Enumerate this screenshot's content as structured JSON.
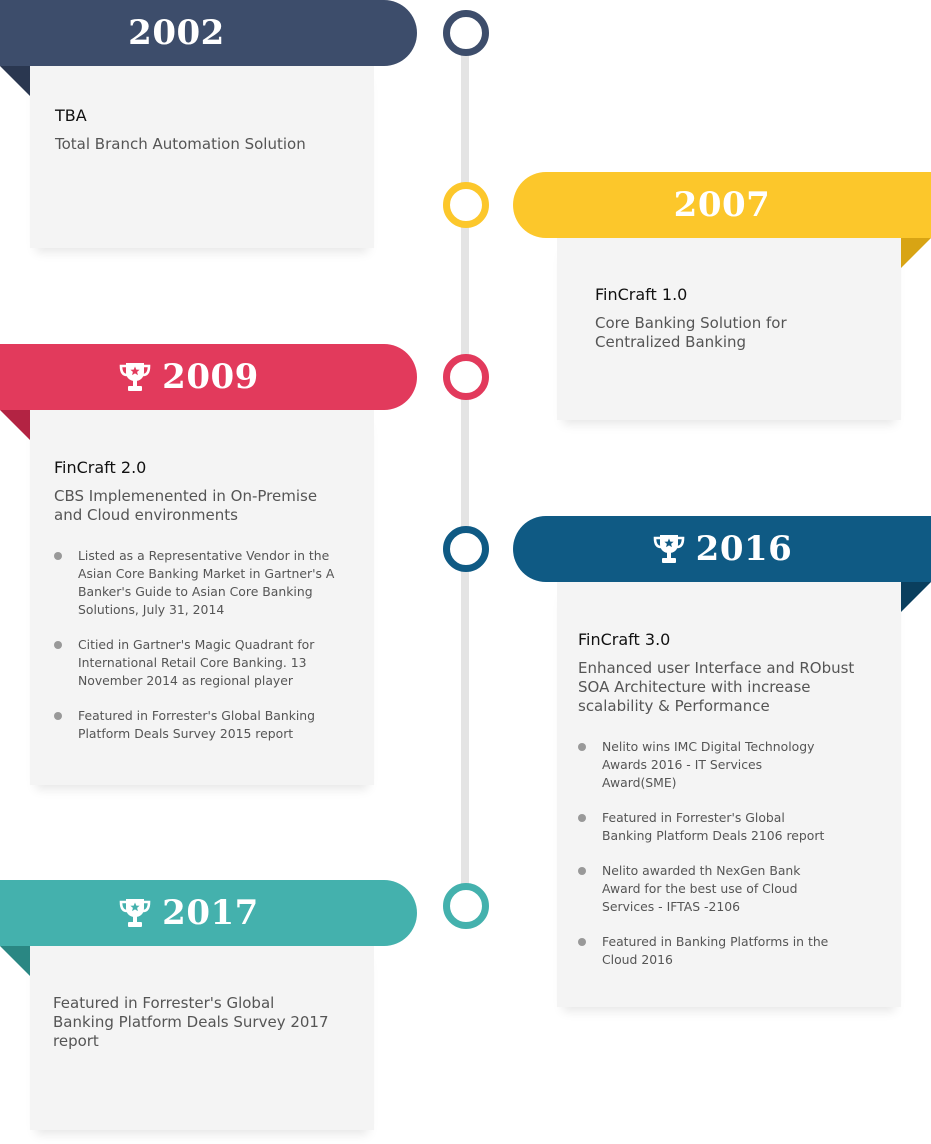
{
  "colors": {
    "navy": "#3d4d6b",
    "yellow": "#fcc72b",
    "red": "#e23a5c",
    "blue": "#0f5a84",
    "teal": "#44b1ad",
    "line": "#e4e4e4",
    "card": "#f4f4f4"
  },
  "milestones": [
    {
      "year": "2002",
      "title": "TBA",
      "subtitle": "Total Branch Automation Solution",
      "has_trophy": false,
      "bullets": []
    },
    {
      "year": "2007",
      "title": "FinCraft 1.0",
      "subtitle": "Core Banking Solution for Centralized Banking",
      "has_trophy": false,
      "bullets": []
    },
    {
      "year": "2009",
      "title": "FinCraft 2.0",
      "subtitle": "CBS Implemenented in On-Premise and Cloud environments",
      "has_trophy": true,
      "bullets": [
        "Listed as a Representative Vendor in the Asian Core Banking Market in Gartner's A Banker's Guide to Asian Core Banking Solutions, July 31, 2014",
        "Citied in Gartner's Magic Quadrant for International Retail Core Banking. 13 November 2014 as regional player",
        "Featured in Forrester's Global Banking Platform Deals Survey 2015 report"
      ]
    },
    {
      "year": "2016",
      "title": "FinCraft 3.0",
      "subtitle": "Enhanced user Interface and RObust SOA Architecture with increase scalability & Performance",
      "has_trophy": true,
      "bullets": [
        "Nelito wins IMC Digital Technology Awards 2016 - IT Services Award(SME)",
        "Featured in Forrester's Global Banking Platform Deals 2106 report",
        "Nelito awarded th NexGen Bank Award for the best use of Cloud Services - IFTAS -2106",
        "Featured in Banking Platforms in the Cloud 2016"
      ]
    },
    {
      "year": "2017",
      "title": "",
      "subtitle": "Featured in Forrester's Global Banking Platform Deals Survey 2017 report",
      "has_trophy": true,
      "bullets": []
    }
  ]
}
